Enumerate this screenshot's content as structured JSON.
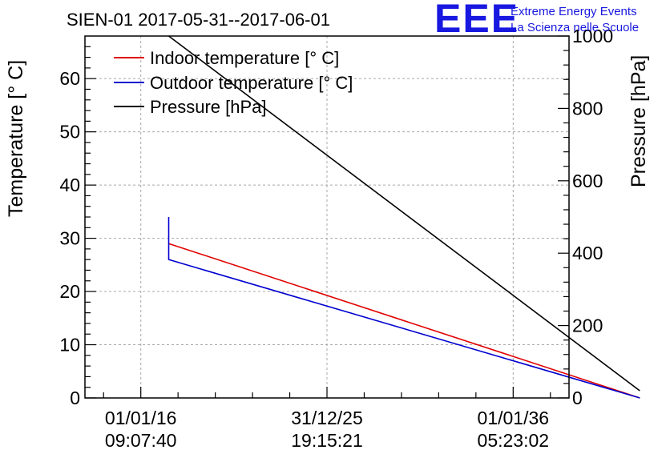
{
  "chart_data": {
    "type": "line",
    "title": "SIEN-01 2017-05-31--2017-06-01",
    "ylabel_left": "Temperature [° C]",
    "ylabel_right": "Pressure [hPa]",
    "xlabel": "",
    "ylim_left": [
      0,
      68
    ],
    "ylim_right": [
      0,
      1000
    ],
    "xlim": [
      -1.5,
      11.5
    ],
    "grid": true,
    "legend_position": "top-left",
    "x_ticks": [
      {
        "x": 0,
        "date": "01/01/16",
        "time": "09:07:40"
      },
      {
        "x": 5,
        "date": "31/12/25",
        "time": "19:15:21"
      },
      {
        "x": 10,
        "date": "01/01/36",
        "time": "05:23:02"
      }
    ],
    "y_ticks_left": [
      0,
      10,
      20,
      30,
      40,
      50,
      60
    ],
    "y_ticks_right": [
      0,
      200,
      400,
      600,
      800,
      1000
    ],
    "series": [
      {
        "name": "Indoor temperature [° C]",
        "axis": "left",
        "color": "#e00000",
        "points": [
          [
            0.75,
            29
          ],
          [
            13.4,
            0
          ]
        ]
      },
      {
        "name": "Outdoor temperature [° C]",
        "axis": "left",
        "color": "#0000d0",
        "points": [
          [
            0.75,
            34
          ],
          [
            0.75,
            26
          ],
          [
            13.4,
            0
          ]
        ]
      },
      {
        "name": "Pressure [hPa]",
        "axis": "right",
        "color": "#000000",
        "points": [
          [
            0.75,
            1000
          ],
          [
            13.4,
            20
          ]
        ]
      }
    ]
  },
  "logo": {
    "mark": "EEE",
    "line1": "Extreme Energy Events",
    "line2": "La Scienza nelle Scuole",
    "color": "#1818e0"
  }
}
